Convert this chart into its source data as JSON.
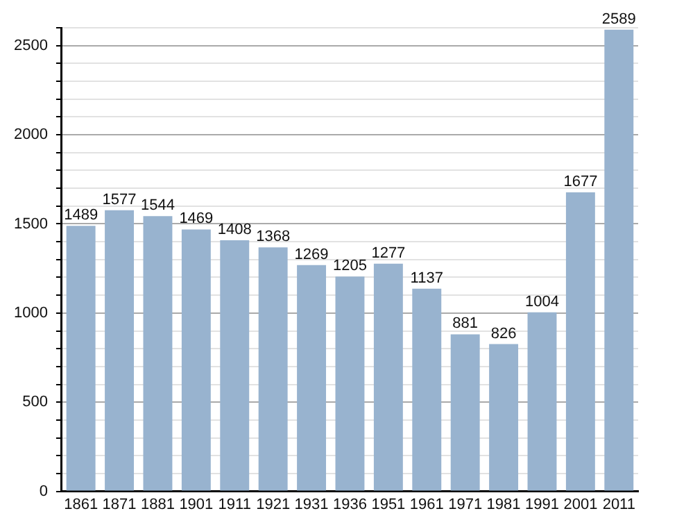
{
  "chart_data": {
    "type": "bar",
    "categories": [
      "1861",
      "1871",
      "1881",
      "1901",
      "1911",
      "1921",
      "1931",
      "1936",
      "1951",
      "1961",
      "1971",
      "1981",
      "1991",
      "2001",
      "2011"
    ],
    "values": [
      1489,
      1577,
      1544,
      1469,
      1408,
      1368,
      1269,
      1205,
      1277,
      1137,
      881,
      826,
      1004,
      1677,
      2589
    ],
    "color": "#98b3cf",
    "ylim": [
      0,
      2600
    ],
    "yticks": [
      0,
      {
        "value": 100,
        "label": null
      },
      {
        "value": 200,
        "label": null
      },
      {
        "value": 300,
        "label": null
      },
      {
        "value": 400,
        "label": null
      },
      500,
      {
        "value": 600,
        "label": null
      },
      {
        "value": 700,
        "label": null
      },
      {
        "value": 800,
        "label": null
      },
      {
        "value": 900,
        "label": null
      },
      1000,
      {
        "value": 1100,
        "label": null
      },
      {
        "value": 1200,
        "label": null
      },
      {
        "value": 1300,
        "label": null
      },
      {
        "value": 1400,
        "label": null
      },
      1500,
      {
        "value": 1600,
        "label": null
      },
      {
        "value": 1700,
        "label": null
      },
      {
        "value": 1800,
        "label": null
      },
      {
        "value": 1900,
        "label": null
      },
      2000,
      {
        "value": 2100,
        "label": null
      },
      {
        "value": 2200,
        "label": null
      },
      {
        "value": 2300,
        "label": null
      },
      {
        "value": 2400,
        "label": null
      },
      2500,
      {
        "value": 2600,
        "label": null
      }
    ],
    "grid": "y",
    "data_labels": true,
    "legend": false
  }
}
